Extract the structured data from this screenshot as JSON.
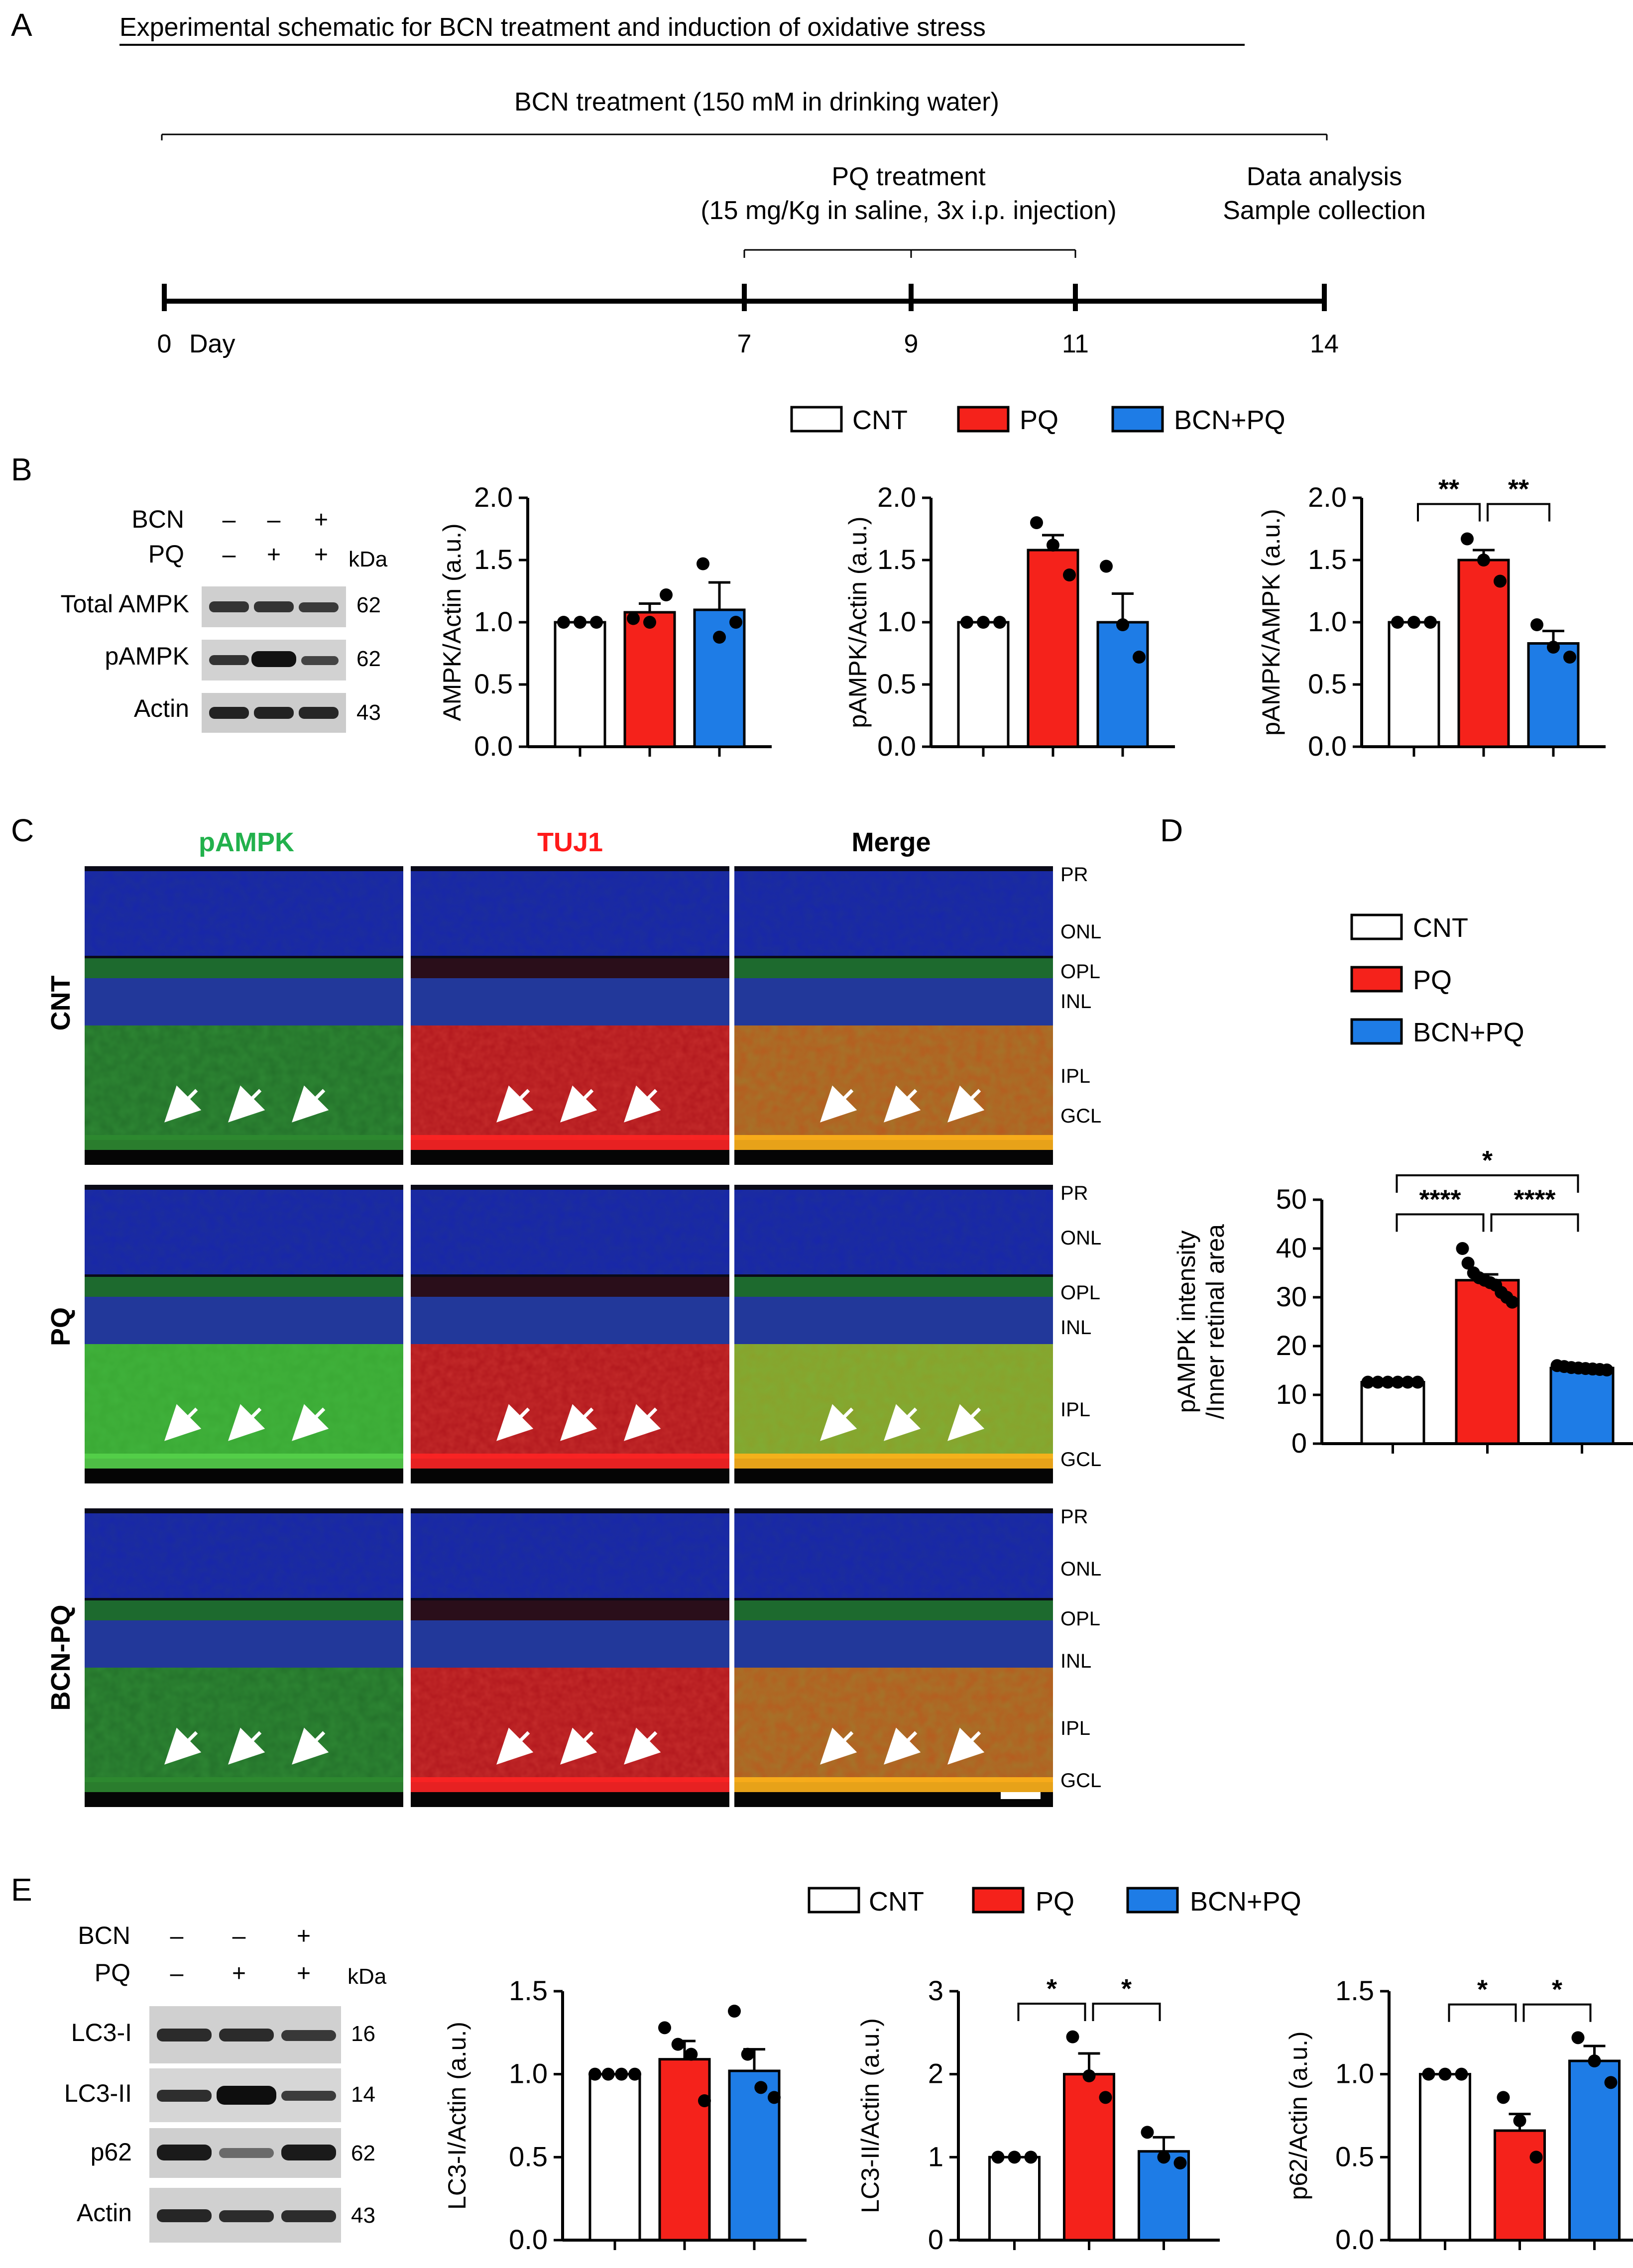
{
  "figure": {
    "panel_letters": [
      "A",
      "B",
      "C",
      "D",
      "E"
    ],
    "panel_a": {
      "title": "Experimental schematic for BCN treatment and induction of oxidative stress",
      "bcn_label": "BCN treatment (150 mM in drinking water)",
      "pq_label_1": "PQ treatment",
      "pq_label_2": "(15 mg/Kg in saline, 3x i.p. injection)",
      "end_label_1": "Data analysis",
      "end_label_2": "Sample collection",
      "day_word": "Day",
      "ticks": [
        "0",
        "7",
        "9",
        "11",
        "14"
      ]
    },
    "legend": [
      {
        "label": "CNT",
        "color": "#ffffff"
      },
      {
        "label": "PQ",
        "color": "#f5221b"
      },
      {
        "label": "BCN+PQ",
        "color": "#1e7ce6"
      }
    ],
    "blot_b": {
      "treatments": [
        {
          "name": "BCN",
          "signs": [
            "–",
            "–",
            "+"
          ]
        },
        {
          "name": "PQ",
          "signs": [
            "–",
            "+",
            "+"
          ]
        }
      ],
      "kda_label": "kDa",
      "bands": [
        {
          "name": "Total AMPK",
          "kda": "62"
        },
        {
          "name": "pAMPK",
          "kda": "62"
        },
        {
          "name": "Actin",
          "kda": "43"
        }
      ]
    },
    "blot_e": {
      "treatments": [
        {
          "name": "BCN",
          "signs": [
            "–",
            "–",
            "+"
          ]
        },
        {
          "name": "PQ",
          "signs": [
            "–",
            "+",
            "+"
          ]
        }
      ],
      "kda_label": "kDa",
      "bands": [
        {
          "name": "LC3-I",
          "kda": "16"
        },
        {
          "name": "LC3-II",
          "kda": "14"
        },
        {
          "name": "p62",
          "kda": "62"
        },
        {
          "name": "Actin",
          "kda": "43"
        }
      ]
    },
    "panel_c": {
      "columns": [
        {
          "label": "pAMPK",
          "color": "#22b14c"
        },
        {
          "label": "TUJ1",
          "color": "#ff1a1a"
        },
        {
          "label": "Merge",
          "color": "#000000"
        }
      ],
      "rows": [
        "CNT",
        "PQ",
        "BCN-PQ"
      ],
      "layers": [
        "PR",
        "ONL",
        "OPL",
        "INL",
        "IPL",
        "GCL"
      ]
    }
  },
  "chart_data": [
    {
      "id": "b1",
      "type": "bar",
      "categories": [
        "CNT",
        "PQ",
        "BCN+PQ"
      ],
      "values": [
        1.0,
        1.08,
        1.1
      ],
      "sem": [
        0.0,
        0.07,
        0.22
      ],
      "points": [
        [
          1.0,
          1.0,
          1.0
        ],
        [
          1.03,
          1.0,
          1.22
        ],
        [
          1.47,
          0.88,
          1.0
        ]
      ],
      "ylabel": "AMPK/Actin (a.u.)",
      "ylim": [
        0,
        2.0
      ],
      "yticks": [
        "0.0",
        "0.5",
        "1.0",
        "1.5",
        "2.0"
      ],
      "sig": []
    },
    {
      "id": "b2",
      "type": "bar",
      "categories": [
        "CNT",
        "PQ",
        "BCN+PQ"
      ],
      "values": [
        1.0,
        1.58,
        1.0
      ],
      "sem": [
        0.0,
        0.12,
        0.23
      ],
      "points": [
        [
          1.0,
          1.0,
          1.0
        ],
        [
          1.8,
          1.62,
          1.38
        ],
        [
          1.45,
          0.98,
          0.72
        ]
      ],
      "ylabel": "pAMPK/Actin (a.u.)",
      "ylim": [
        0,
        2.0
      ],
      "yticks": [
        "0.0",
        "0.5",
        "1.0",
        "1.5",
        "2.0"
      ],
      "sig": []
    },
    {
      "id": "b3",
      "type": "bar",
      "categories": [
        "CNT",
        "PQ",
        "BCN+PQ"
      ],
      "values": [
        1.0,
        1.5,
        0.83
      ],
      "sem": [
        0.0,
        0.08,
        0.1
      ],
      "points": [
        [
          1.0,
          1.0,
          1.0
        ],
        [
          1.67,
          1.5,
          1.33
        ],
        [
          0.98,
          0.8,
          0.72
        ]
      ],
      "ylabel": "pAMPK/AMPK (a.u.)",
      "ylim": [
        0,
        2.0
      ],
      "yticks": [
        "0.0",
        "0.5",
        "1.0",
        "1.5",
        "2.0"
      ],
      "sig": [
        {
          "from": 0,
          "to": 1,
          "label": "**",
          "y": 1.95
        },
        {
          "from": 1,
          "to": 2,
          "label": "**",
          "y": 1.95
        }
      ]
    },
    {
      "id": "d",
      "type": "bar",
      "categories": [
        "CNT",
        "PQ",
        "BCN+PQ"
      ],
      "values": [
        12.6,
        33.5,
        15.5
      ],
      "sem": [
        0.2,
        1.2,
        0.3
      ],
      "points": [
        [
          12.6,
          12.6,
          12.6,
          12.6,
          12.6,
          12.6
        ],
        [
          40,
          37,
          35,
          34,
          33.5,
          33,
          32.5,
          31,
          30,
          29
        ],
        [
          16,
          15.8,
          15.6,
          15.5,
          15.4,
          15.3,
          15.2,
          15.1
        ]
      ],
      "ylabel": "pAMPK intensity /Inner retinal area",
      "ylim": [
        0,
        50
      ],
      "yticks": [
        "0",
        "10",
        "20",
        "30",
        "40",
        "50"
      ],
      "sig": [
        {
          "from": 0,
          "to": 1,
          "label": "****",
          "y": 47
        },
        {
          "from": 1,
          "to": 2,
          "label": "****",
          "y": 47
        },
        {
          "from": 0,
          "to": 2,
          "label": "*",
          "y": 55
        }
      ]
    },
    {
      "id": "e1",
      "type": "bar",
      "categories": [
        "CNT",
        "PQ",
        "BCN+PQ"
      ],
      "values": [
        1.0,
        1.09,
        1.02
      ],
      "sem": [
        0.0,
        0.11,
        0.13
      ],
      "points": [
        [
          1.0,
          1.0,
          1.0,
          1.0
        ],
        [
          1.28,
          1.18,
          1.12,
          0.84
        ],
        [
          1.38,
          1.12,
          0.92,
          0.86
        ]
      ],
      "ylabel": "LC3-I/Actin (a.u.)",
      "ylim": [
        0,
        1.5
      ],
      "yticks": [
        "0.0",
        "0.5",
        "1.0",
        "1.5"
      ],
      "sig": []
    },
    {
      "id": "e2",
      "type": "bar",
      "categories": [
        "CNT",
        "PQ",
        "BCN+PQ"
      ],
      "values": [
        1.0,
        2.0,
        1.07
      ],
      "sem": [
        0.0,
        0.25,
        0.17
      ],
      "points": [
        [
          1.0,
          1.0,
          1.0
        ],
        [
          2.45,
          1.98,
          1.72
        ],
        [
          1.3,
          1.0,
          0.93
        ]
      ],
      "ylabel": "LC3-II/Actin (a.u.)",
      "ylim": [
        0,
        3
      ],
      "yticks": [
        "0",
        "1",
        "2",
        "3"
      ],
      "sig": [
        {
          "from": 0,
          "to": 1,
          "label": "*",
          "y": 2.85
        },
        {
          "from": 1,
          "to": 2,
          "label": "*",
          "y": 2.85
        }
      ]
    },
    {
      "id": "e3",
      "type": "bar",
      "categories": [
        "CNT",
        "PQ",
        "BCN+PQ"
      ],
      "values": [
        1.0,
        0.66,
        1.08
      ],
      "sem": [
        0.0,
        0.1,
        0.09
      ],
      "points": [
        [
          1.0,
          1.0,
          1.0
        ],
        [
          0.86,
          0.72,
          0.5
        ],
        [
          1.22,
          1.08,
          0.95
        ]
      ],
      "ylabel": "p62/Actin (a.u.)",
      "ylim": [
        0,
        1.5
      ],
      "yticks": [
        "0.0",
        "0.5",
        "1.0",
        "1.5"
      ],
      "sig": [
        {
          "from": 0,
          "to": 1,
          "label": "*",
          "y": 1.42
        },
        {
          "from": 1,
          "to": 2,
          "label": "*",
          "y": 1.42
        }
      ]
    }
  ]
}
